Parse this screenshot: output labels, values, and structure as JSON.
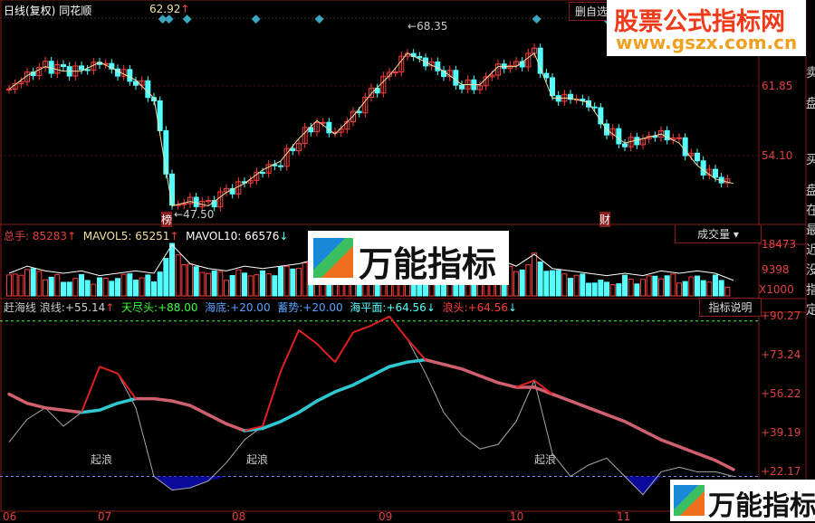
{
  "header": {
    "title": "日线(复权)",
    "name": "同花顺",
    "price": "62.92",
    "price_arrow": "↑",
    "delete_watch": "删自选"
  },
  "price_panel": {
    "axis_labels": [
      "61.85",
      "54.10"
    ],
    "axis_values": [
      61.85,
      54.1
    ],
    "high_label": "68.35",
    "low_label": "47.50",
    "marker_bang": "榜",
    "marker_cai": "财",
    "closes": [
      61.5,
      63,
      64,
      63.5,
      63.5,
      64.5,
      63.5,
      62.5,
      60.5,
      48.5,
      49,
      48.5,
      50,
      51,
      52.5,
      53.5,
      56,
      58,
      56.5,
      58.5,
      61,
      63,
      65.5,
      64.5,
      63.5,
      62,
      62,
      64,
      64,
      65.5,
      60.5,
      60.5,
      60,
      57,
      55.5,
      56,
      56.5,
      55.5,
      53,
      51.5,
      51
    ]
  },
  "volume_panel": {
    "total_label": "总手:",
    "total": "85283",
    "mavol5_label": "MAVOL5:",
    "mavol5": "65251",
    "mavol10_label": "MAVOL10:",
    "mavol10": "66576",
    "selector": "成交量",
    "axis_labels": [
      "18473",
      "9398",
      "X1000"
    ],
    "volumes": [
      6,
      9,
      7,
      6,
      7,
      5,
      6,
      7,
      6,
      18,
      10,
      8,
      7,
      9,
      8,
      9,
      10,
      12,
      9,
      8,
      11,
      10,
      14,
      12,
      13,
      11,
      10,
      12,
      9,
      14,
      8,
      7,
      6,
      5,
      6,
      5,
      7,
      6,
      7,
      6,
      3
    ]
  },
  "oscillator": {
    "name": "赶海线",
    "wave_label": "浪线:",
    "wave": "+55.14",
    "peak_label": "天尽头:",
    "peak": "+88.00",
    "bottom_label": "海底:",
    "bottom": "+20.00",
    "potential_label": "蓄势:",
    "potential": "+20.00",
    "sea_label": "海平面:",
    "sea": "+64.56",
    "head_label": "浪头:",
    "head": "+64.56",
    "help_button": "指标说明",
    "axis_labels": [
      "+90.27",
      "+73.24",
      "+56.22",
      "+39.19",
      "+22.17"
    ],
    "rise_label": "起浪",
    "wave_series": [
      35,
      45,
      50,
      42,
      48,
      68,
      65,
      50,
      20,
      14,
      15,
      18,
      26,
      36,
      42,
      66,
      84,
      78,
      70,
      83,
      86,
      90,
      80,
      65,
      48,
      38,
      32,
      34,
      44,
      62,
      30,
      20,
      25,
      28,
      20,
      12,
      22,
      24,
      22,
      22,
      20
    ],
    "sea_series": [
      56,
      52,
      50,
      49,
      48,
      49,
      52,
      54,
      54,
      53,
      51,
      47,
      43,
      40,
      41,
      44,
      48,
      53,
      57,
      60,
      64,
      68,
      70,
      71,
      69,
      67,
      64,
      61,
      59,
      59,
      56,
      53,
      50,
      47,
      44,
      40,
      36,
      33,
      30,
      27,
      23
    ]
  },
  "date_axis": [
    "06",
    "07",
    "08",
    "09",
    "10",
    "11"
  ],
  "watermarks": {
    "site_name": "股票公式指标网",
    "site_url": "www.gszx.com.cn",
    "logo_text": "万能指标"
  },
  "side_panel": [
    "卖",
    "盘",
    "买",
    "盘",
    "在",
    "最",
    "近",
    "没",
    "指",
    "定"
  ],
  "colors": {
    "up": "#ff3c3c",
    "down": "#54ffff",
    "axis": "#8a1c1c",
    "sea_fill": "#0a0a9a"
  }
}
